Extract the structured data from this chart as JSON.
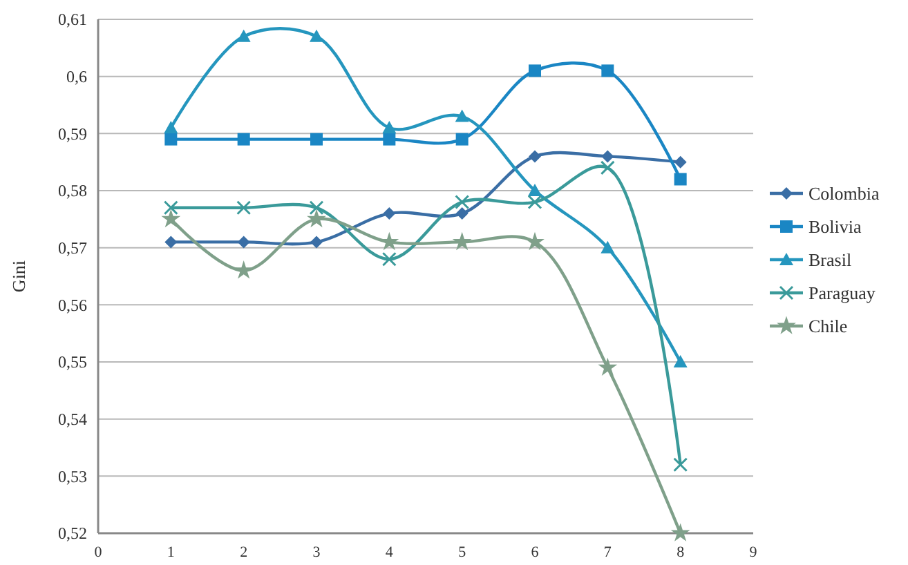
{
  "chart_data": {
    "type": "line",
    "ylabel": "Gini",
    "x": [
      1,
      2,
      3,
      4,
      5,
      6,
      7,
      8
    ],
    "series": [
      {
        "name": "Colombia",
        "color": "#3a6ea5",
        "marker": "diamond",
        "values": [
          0.571,
          0.571,
          0.571,
          0.576,
          0.576,
          0.586,
          0.586,
          0.585
        ]
      },
      {
        "name": "Bolivia",
        "color": "#1a86c4",
        "marker": "square",
        "values": [
          0.589,
          0.589,
          0.589,
          0.589,
          0.589,
          0.601,
          0.601,
          0.582
        ]
      },
      {
        "name": "Brasil",
        "color": "#2596be",
        "marker": "triangle",
        "values": [
          0.591,
          0.607,
          0.607,
          0.591,
          0.593,
          0.58,
          0.57,
          0.55
        ]
      },
      {
        "name": "Paraguay",
        "color": "#3a9a9a",
        "marker": "cross",
        "values": [
          0.577,
          0.577,
          0.577,
          0.568,
          0.578,
          0.578,
          0.584,
          0.532
        ]
      },
      {
        "name": "Chile",
        "color": "#7fa08a",
        "marker": "star",
        "values": [
          0.575,
          0.566,
          0.575,
          0.571,
          0.571,
          0.571,
          0.549,
          0.52
        ]
      }
    ],
    "xlim": [
      0,
      9
    ],
    "xticks": [
      0,
      1,
      2,
      3,
      4,
      5,
      6,
      7,
      8,
      9
    ],
    "ylim": [
      0.52,
      0.61
    ],
    "yticks": [
      {
        "value": 0.52,
        "label": "0,52"
      },
      {
        "value": 0.53,
        "label": "0,53"
      },
      {
        "value": 0.54,
        "label": "0,54"
      },
      {
        "value": 0.55,
        "label": "0,55"
      },
      {
        "value": 0.56,
        "label": "0,56"
      },
      {
        "value": 0.57,
        "label": "0,57"
      },
      {
        "value": 0.58,
        "label": "0,58"
      },
      {
        "value": 0.59,
        "label": "0,59"
      },
      {
        "value": 0.6,
        "label": "0,6"
      },
      {
        "value": 0.61,
        "label": "0,61"
      }
    ],
    "grid": "y",
    "legend": "right",
    "line_style": "solid"
  }
}
